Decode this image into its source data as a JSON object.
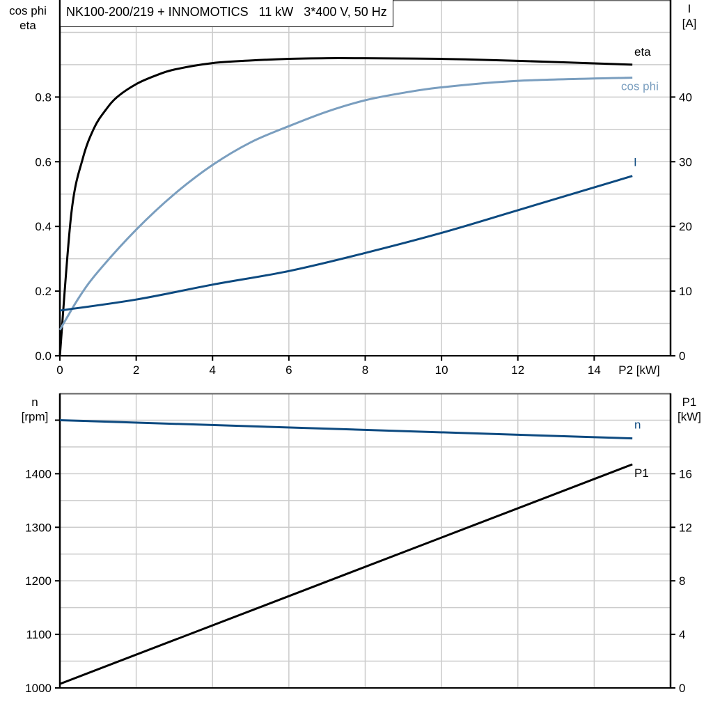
{
  "title": "NK100-200/219 + INNOMOTICS   11 kW   3*400 V, 50 Hz",
  "colors": {
    "eta": "#000000",
    "cos_phi": "#7a9ebf",
    "I": "#0d4a80",
    "n": "#0d4a80",
    "P1": "#000000",
    "grid": "#cccccc"
  },
  "chart_data": [
    {
      "type": "line",
      "xlabel": "P2 [kW]",
      "xlim": [
        0,
        16
      ],
      "xticks": [
        0,
        2,
        4,
        6,
        8,
        10,
        12,
        14
      ],
      "ylabel_left": [
        "cos phi",
        "eta"
      ],
      "ylim_left": [
        0,
        1.1
      ],
      "yticks_left": [
        0.0,
        0.2,
        0.4,
        0.6,
        0.8
      ],
      "yticks_left_labels": [
        "0.0",
        "0.2",
        "0.4",
        "0.6",
        "0.8"
      ],
      "ylabel_right": [
        "I",
        "[A]"
      ],
      "ylim_right": [
        0,
        55
      ],
      "yticks_right": [
        0,
        10,
        20,
        30,
        40
      ],
      "grid": true,
      "series": [
        {
          "name": "eta",
          "axis": "left",
          "color": "#000000",
          "x": [
            0,
            0.3,
            0.6,
            0.9,
            1.2,
            1.5,
            2,
            2.5,
            3,
            4,
            5,
            6,
            7,
            8,
            10,
            12,
            15
          ],
          "y": [
            0,
            0.44,
            0.61,
            0.705,
            0.76,
            0.8,
            0.84,
            0.866,
            0.885,
            0.905,
            0.913,
            0.918,
            0.92,
            0.92,
            0.918,
            0.912,
            0.9
          ]
        },
        {
          "name": "cos phi",
          "axis": "left",
          "color": "#7a9ebf",
          "x": [
            0,
            0.5,
            1,
            2,
            3,
            4,
            5,
            6,
            7,
            8,
            9,
            10,
            12,
            15
          ],
          "y": [
            0.08,
            0.18,
            0.26,
            0.39,
            0.5,
            0.59,
            0.66,
            0.71,
            0.755,
            0.79,
            0.813,
            0.83,
            0.85,
            0.86
          ]
        },
        {
          "name": "I",
          "axis": "right",
          "color": "#0d4a80",
          "x": [
            0,
            2,
            4,
            6,
            8,
            10,
            12,
            15
          ],
          "y": [
            7.0,
            8.7,
            11.0,
            13.1,
            15.9,
            19.0,
            22.5,
            27.8
          ]
        }
      ]
    },
    {
      "type": "line",
      "xlim": [
        0,
        16
      ],
      "ylabel_left": [
        "n",
        "[rpm]"
      ],
      "ylim_left": [
        1000,
        1550
      ],
      "yticks_left": [
        1000,
        1100,
        1200,
        1300,
        1400
      ],
      "ylabel_right": [
        "P1",
        "[kW]"
      ],
      "ylim_right": [
        0,
        22
      ],
      "yticks_right": [
        0,
        4,
        8,
        12,
        16
      ],
      "grid": true,
      "series": [
        {
          "name": "n",
          "axis": "left",
          "color": "#0d4a80",
          "x": [
            0,
            15
          ],
          "y": [
            1500,
            1466
          ]
        },
        {
          "name": "P1",
          "axis": "right",
          "color": "#000000",
          "x": [
            0,
            15
          ],
          "y": [
            0.3,
            16.7
          ]
        }
      ]
    }
  ]
}
